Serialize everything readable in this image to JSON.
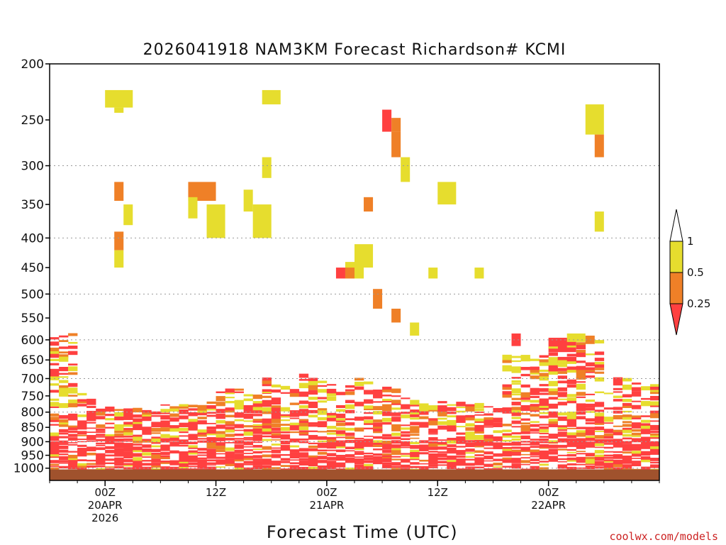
{
  "colors": {
    "red": "#ff4040",
    "orange": "#ef8027",
    "yellow": "#e6dd2e",
    "ground": "#a0522d",
    "grid": "#999999"
  },
  "credit": "coolwx.com/models",
  "chart_data": {
    "type": "heatmap",
    "title": "2026041918 NAM3KM Forecast Richardson# KCMI",
    "xlabel": "Forecast Time (UTC)",
    "ylabel": "",
    "y_scale": "log-pressure (hPa, inverted)",
    "ylim": [
      1050,
      200
    ],
    "xlim": [
      "2026-04-19T18Z",
      "2026-04-22T12Z"
    ],
    "y_ticks": [
      200,
      250,
      300,
      350,
      400,
      450,
      500,
      550,
      600,
      650,
      700,
      750,
      800,
      850,
      900,
      950,
      1000
    ],
    "y_tick_labels": [
      "200",
      "250",
      "300",
      "350",
      "400",
      "450",
      "500",
      "550",
      "600",
      "650",
      "700",
      "750",
      "800",
      "850",
      "900",
      "950",
      "1000"
    ],
    "dotted_gridlines_at": [
      300,
      400,
      500,
      600,
      700,
      800,
      900,
      1000
    ],
    "x_ticks": [
      {
        "time": "2026-04-20T00Z",
        "lines": [
          "00Z",
          "20APR",
          "2026"
        ]
      },
      {
        "time": "2026-04-20T12Z",
        "lines": [
          "12Z",
          "",
          ""
        ]
      },
      {
        "time": "2026-04-21T00Z",
        "lines": [
          "00Z",
          "21APR",
          ""
        ]
      },
      {
        "time": "2026-04-21T12Z",
        "lines": [
          "12Z",
          "",
          ""
        ]
      },
      {
        "time": "2026-04-22T00Z",
        "lines": [
          "00Z",
          "22APR",
          ""
        ]
      }
    ],
    "legend": {
      "placement": "right",
      "bins": [
        {
          "range": "< 0.25",
          "color": "red"
        },
        {
          "range": "0.25 - 0.5",
          "color": "orange"
        },
        {
          "range": "0.5 - 1",
          "color": "yellow"
        },
        {
          "range": "> 1",
          "color": "white"
        }
      ],
      "boundary_labels": [
        "1",
        "0.5",
        "0.25"
      ]
    },
    "ground_below_hPa": 1005,
    "time_step_hours": 1,
    "cells": [
      {
        "t0": "2026-04-20T00Z",
        "t1": "2026-04-20T03Z",
        "p_top": 222,
        "p_bot": 238,
        "bin": "yellow"
      },
      {
        "t0": "2026-04-20T01Z",
        "t1": "2026-04-20T02Z",
        "p_top": 238,
        "p_bot": 243,
        "bin": "yellow"
      },
      {
        "t0": "2026-04-20T01Z",
        "t1": "2026-04-20T02Z",
        "p_top": 320,
        "p_bot": 345,
        "bin": "orange"
      },
      {
        "t0": "2026-04-20T02Z",
        "t1": "2026-04-20T03Z",
        "p_top": 350,
        "p_bot": 380,
        "bin": "yellow"
      },
      {
        "t0": "2026-04-20T01Z",
        "t1": "2026-04-20T02Z",
        "p_top": 390,
        "p_bot": 420,
        "bin": "orange"
      },
      {
        "t0": "2026-04-20T01Z",
        "t1": "2026-04-20T02Z",
        "p_top": 420,
        "p_bot": 450,
        "bin": "yellow"
      },
      {
        "t0": "2026-04-20T09Z",
        "t1": "2026-04-20T12Z",
        "p_top": 320,
        "p_bot": 345,
        "bin": "orange"
      },
      {
        "t0": "2026-04-20T09Z",
        "t1": "2026-04-20T10Z",
        "p_top": 340,
        "p_bot": 370,
        "bin": "yellow"
      },
      {
        "t0": "2026-04-20T11Z",
        "t1": "2026-04-20T13Z",
        "p_top": 350,
        "p_bot": 400,
        "bin": "yellow"
      },
      {
        "t0": "2026-04-20T15Z",
        "t1": "2026-04-20T16Z",
        "p_top": 330,
        "p_bot": 360,
        "bin": "yellow"
      },
      {
        "t0": "2026-04-20T16Z",
        "t1": "2026-04-20T18Z",
        "p_top": 350,
        "p_bot": 400,
        "bin": "yellow"
      },
      {
        "t0": "2026-04-20T17Z",
        "t1": "2026-04-20T19Z",
        "p_top": 222,
        "p_bot": 235,
        "bin": "yellow"
      },
      {
        "t0": "2026-04-20T17Z",
        "t1": "2026-04-20T18Z",
        "p_top": 290,
        "p_bot": 315,
        "bin": "yellow"
      },
      {
        "t0": "2026-04-21T02Z",
        "t1": "2026-04-21T04Z",
        "p_top": 440,
        "p_bot": 470,
        "bin": "yellow"
      },
      {
        "t0": "2026-04-21T01Z",
        "t1": "2026-04-21T02Z",
        "p_top": 450,
        "p_bot": 470,
        "bin": "red"
      },
      {
        "t0": "2026-04-21T02Z",
        "t1": "2026-04-21T03Z",
        "p_top": 450,
        "p_bot": 470,
        "bin": "orange"
      },
      {
        "t0": "2026-04-21T03Z",
        "t1": "2026-04-21T05Z",
        "p_top": 410,
        "p_bot": 450,
        "bin": "yellow"
      },
      {
        "t0": "2026-04-21T04Z",
        "t1": "2026-04-21T05Z",
        "p_top": 340,
        "p_bot": 360,
        "bin": "orange"
      },
      {
        "t0": "2026-04-21T05Z",
        "t1": "2026-04-21T06Z",
        "p_top": 490,
        "p_bot": 530,
        "bin": "orange"
      },
      {
        "t0": "2026-04-21T06Z",
        "t1": "2026-04-21T07Z",
        "p_top": 240,
        "p_bot": 262,
        "bin": "red"
      },
      {
        "t0": "2026-04-21T07Z",
        "t1": "2026-04-21T08Z",
        "p_top": 248,
        "p_bot": 262,
        "bin": "orange"
      },
      {
        "t0": "2026-04-21T07Z",
        "t1": "2026-04-21T08Z",
        "p_top": 262,
        "p_bot": 290,
        "bin": "orange"
      },
      {
        "t0": "2026-04-21T08Z",
        "t1": "2026-04-21T09Z",
        "p_top": 290,
        "p_bot": 320,
        "bin": "yellow"
      },
      {
        "t0": "2026-04-21T07Z",
        "t1": "2026-04-21T08Z",
        "p_top": 530,
        "p_bot": 560,
        "bin": "orange"
      },
      {
        "t0": "2026-04-21T09Z",
        "t1": "2026-04-21T10Z",
        "p_top": 560,
        "p_bot": 590,
        "bin": "yellow"
      },
      {
        "t0": "2026-04-21T11Z",
        "t1": "2026-04-21T12Z",
        "p_top": 450,
        "p_bot": 470,
        "bin": "yellow"
      },
      {
        "t0": "2026-04-21T12Z",
        "t1": "2026-04-21T14Z",
        "p_top": 320,
        "p_bot": 350,
        "bin": "yellow"
      },
      {
        "t0": "2026-04-21T16Z",
        "t1": "2026-04-21T17Z",
        "p_top": 450,
        "p_bot": 470,
        "bin": "yellow"
      },
      {
        "t0": "2026-04-21T20Z",
        "t1": "2026-04-21T21Z",
        "p_top": 585,
        "p_bot": 615,
        "bin": "red"
      },
      {
        "t0": "2026-04-22T00Z",
        "t1": "2026-04-22T03Z",
        "p_top": 595,
        "p_bot": 630,
        "bin": "red"
      },
      {
        "t0": "2026-04-22T02Z",
        "t1": "2026-04-22T04Z",
        "p_top": 585,
        "p_bot": 605,
        "bin": "yellow"
      },
      {
        "t0": "2026-04-22T04Z",
        "t1": "2026-04-22T05Z",
        "p_top": 590,
        "p_bot": 610,
        "bin": "orange"
      },
      {
        "t0": "2026-04-22T04Z",
        "t1": "2026-04-22T06Z",
        "p_top": 235,
        "p_bot": 265,
        "bin": "yellow"
      },
      {
        "t0": "2026-04-22T05Z",
        "t1": "2026-04-22T06Z",
        "p_top": 265,
        "p_bot": 290,
        "bin": "orange"
      },
      {
        "t0": "2026-04-22T05Z",
        "t1": "2026-04-22T06Z",
        "p_top": 360,
        "p_bot": 390,
        "bin": "yellow"
      }
    ],
    "lower_layer_note": "Dense red/orange/yellow banding between ~580 hPa and ~1000 hPa throughout the period; values < 0.25 dominate near the surface."
  }
}
